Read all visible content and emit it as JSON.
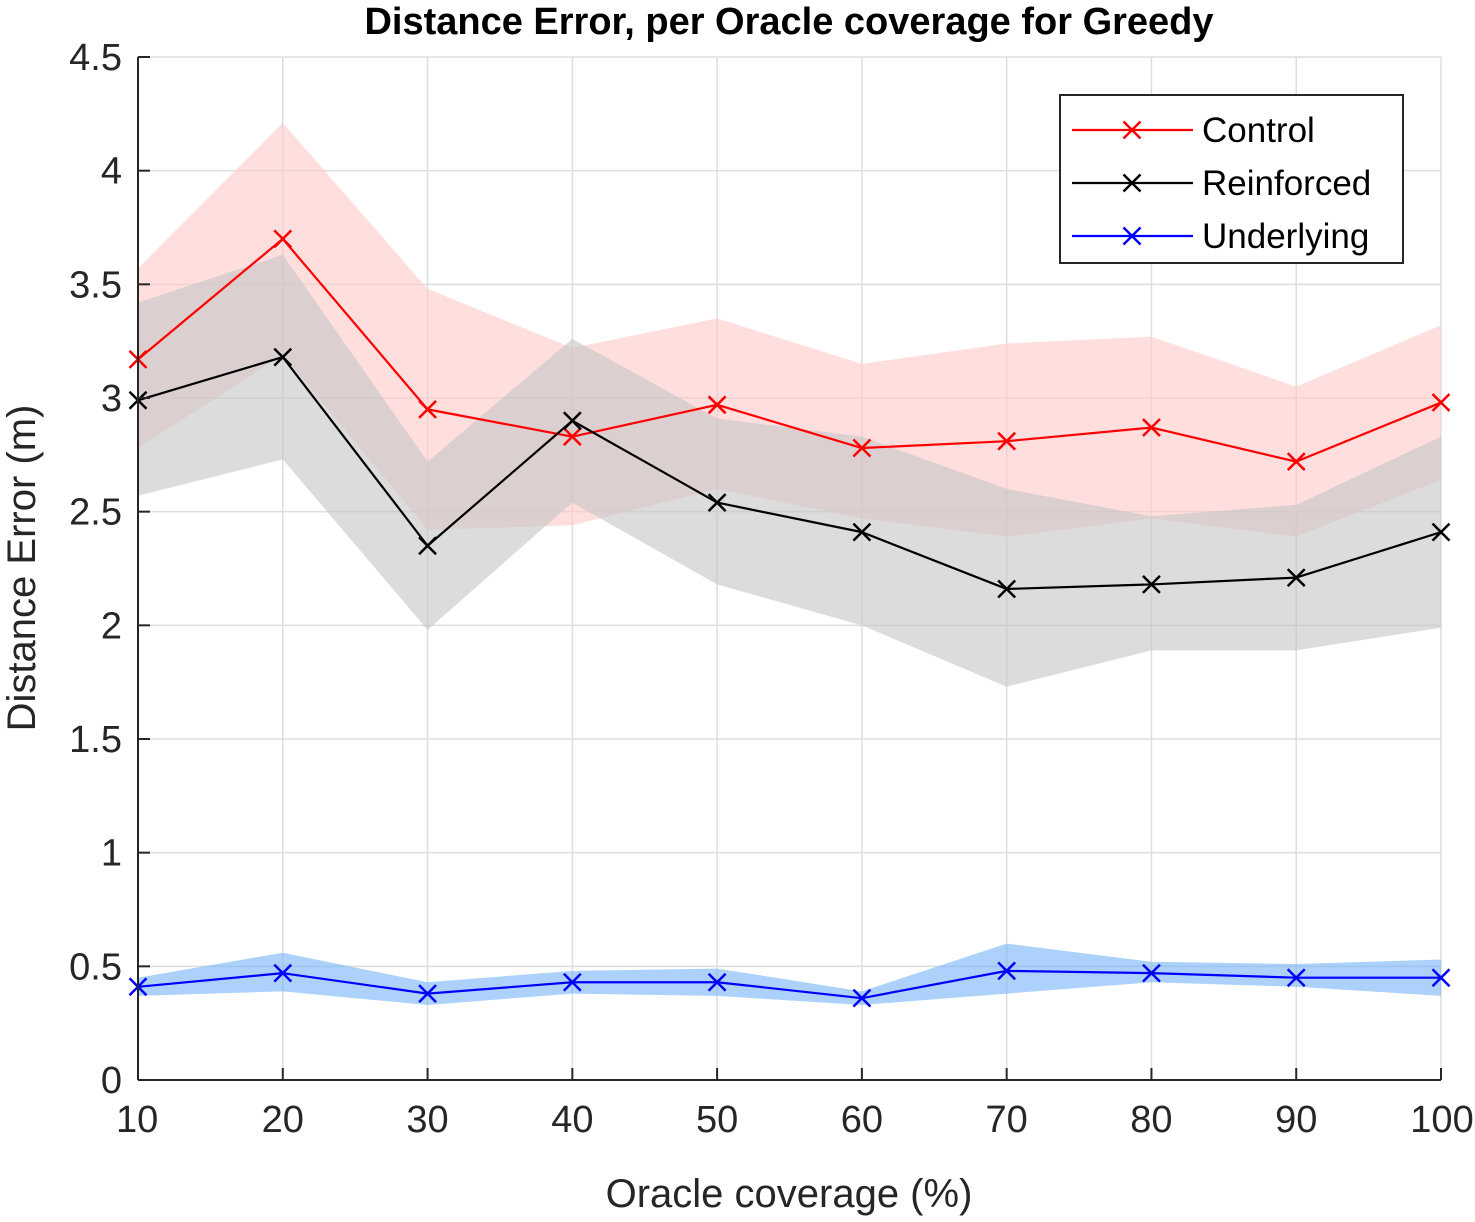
{
  "chart_data": {
    "type": "line",
    "title": "Distance Error, per Oracle coverage for Greedy",
    "xlabel": "Oracle coverage (%)",
    "ylabel": "Distance Error (m)",
    "x": [
      10,
      20,
      30,
      40,
      50,
      60,
      70,
      80,
      90,
      100
    ],
    "xlim": [
      10,
      100
    ],
    "ylim": [
      0,
      4.5
    ],
    "xticks": [
      "10",
      "20",
      "30",
      "40",
      "50",
      "60",
      "70",
      "80",
      "90",
      "100"
    ],
    "yticks": [
      "0",
      "0.5",
      "1",
      "1.5",
      "2",
      "2.5",
      "3",
      "3.5",
      "4",
      "4.5"
    ],
    "grid": true,
    "legend_position": "top-right",
    "series": [
      {
        "name": "Control",
        "color": "#ff0000",
        "band_color": "#ffc8c8",
        "values": [
          3.17,
          3.7,
          2.95,
          2.83,
          2.97,
          2.78,
          2.81,
          2.87,
          2.72,
          2.98
        ],
        "upper": [
          3.57,
          4.21,
          3.48,
          3.22,
          3.35,
          3.15,
          3.24,
          3.27,
          3.05,
          3.32
        ],
        "lower": [
          2.78,
          3.19,
          2.42,
          2.44,
          2.6,
          2.47,
          2.39,
          2.47,
          2.39,
          2.64
        ]
      },
      {
        "name": "Reinforced",
        "color": "#000000",
        "band_color": "#c4c4c4",
        "values": [
          2.99,
          3.18,
          2.35,
          2.9,
          2.54,
          2.41,
          2.16,
          2.18,
          2.21,
          2.41
        ],
        "upper": [
          3.42,
          3.63,
          2.72,
          3.26,
          2.91,
          2.83,
          2.6,
          2.48,
          2.53,
          2.83
        ],
        "lower": [
          2.57,
          2.73,
          1.98,
          2.54,
          2.18,
          2.0,
          1.73,
          1.89,
          1.89,
          1.99
        ]
      },
      {
        "name": "Underlying",
        "color": "#0000ff",
        "band_color": "#75b4f8",
        "values": [
          0.41,
          0.47,
          0.38,
          0.43,
          0.43,
          0.36,
          0.48,
          0.47,
          0.45,
          0.45
        ],
        "upper": [
          0.45,
          0.56,
          0.43,
          0.48,
          0.49,
          0.39,
          0.6,
          0.52,
          0.51,
          0.53
        ],
        "lower": [
          0.37,
          0.39,
          0.33,
          0.38,
          0.37,
          0.33,
          0.38,
          0.43,
          0.41,
          0.37
        ]
      }
    ]
  }
}
